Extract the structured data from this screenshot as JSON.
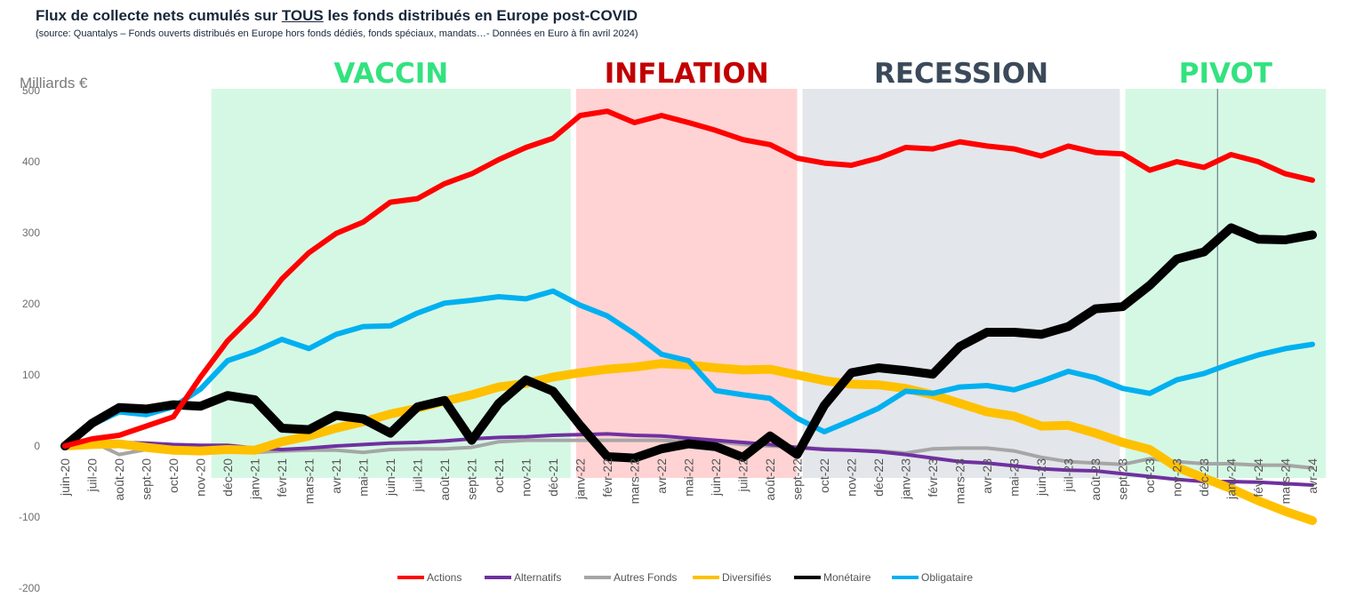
{
  "header": {
    "title_before": "Flux de collecte nets cumulés sur ",
    "title_emph": "TOUS",
    "title_after": " les fonds distribués en Europe post-COVID",
    "subtitle": "(source: Quantalys – Fonds ouverts distribués en Europe hors fonds dédiés, fonds spéciaux, mandats…- Données en Euro à fin avril 2024)"
  },
  "chart_data": {
    "type": "line",
    "ylabel": "Milliards €",
    "ylim": [
      -200,
      500
    ],
    "yticks": [
      500,
      400,
      300,
      200,
      100,
      0,
      -100,
      -200
    ],
    "categories": [
      "juin-20",
      "juil-20",
      "août-20",
      "sept-20",
      "oct-20",
      "nov-20",
      "déc-20",
      "janv-21",
      "févr-21",
      "mars-21",
      "avr-21",
      "mai-21",
      "juin-21",
      "juil-21",
      "août-21",
      "sept-21",
      "oct-21",
      "nov-21",
      "déc-21",
      "janv-22",
      "févr-22",
      "mars-22",
      "avr-22",
      "mai-22",
      "juin-22",
      "juil-22",
      "août-22",
      "sept-22",
      "oct-22",
      "nov-22",
      "déc-22",
      "janv-23",
      "févr-23",
      "mars-23",
      "avr-23",
      "mai-23",
      "juin-23",
      "juil-23",
      "août-23",
      "sept-23",
      "oct-23",
      "nov-23",
      "déc-23",
      "janv-24",
      "févr-24",
      "mars-24",
      "avr-24"
    ],
    "periods": [
      {
        "label": "VACCIN",
        "start": 5.4,
        "end": 18.65,
        "color": "#d5f8e4",
        "text_color": "#33e27f"
      },
      {
        "label": "INFLATION",
        "start": 18.85,
        "end": 27.0,
        "color": "#ffd3d3",
        "text_color": "#c20000"
      },
      {
        "label": "RECESSION",
        "start": 27.2,
        "end": 38.9,
        "color": "#e3e6ea",
        "text_color": "#3b4a5a"
      },
      {
        "label": "PIVOT",
        "start": 39.1,
        "end": 46.5,
        "color": "#d5f8e4",
        "text_color": "#33e27f"
      }
    ],
    "vline_at": 42.5,
    "series": [
      {
        "name": "Autres Fonds",
        "color": "#a6a6a6",
        "width": 4,
        "values": [
          0,
          6,
          -12,
          -5,
          -3,
          -4,
          -3,
          -9,
          -7,
          -6,
          -6,
          -9,
          -5,
          -4,
          -4,
          -2,
          6,
          8,
          8,
          8,
          8,
          8,
          8,
          6,
          6,
          2,
          0,
          -2,
          -4,
          -6,
          -7,
          -10,
          -4,
          -3,
          -3,
          -7,
          -16,
          -22,
          -24,
          -26,
          -18,
          -22,
          -25,
          -25,
          -27,
          -27,
          -31
        ]
      },
      {
        "name": "Alternatifs",
        "color": "#7030a0",
        "width": 4,
        "values": [
          0,
          4,
          5,
          4,
          2,
          1,
          1,
          -3,
          -5,
          -3,
          0,
          2,
          4,
          5,
          7,
          10,
          12,
          13,
          15,
          16,
          17,
          15,
          14,
          11,
          8,
          5,
          2,
          -2,
          -5,
          -6,
          -8,
          -12,
          -17,
          -22,
          -24,
          -28,
          -32,
          -34,
          -35,
          -39,
          -43,
          -47,
          -50,
          -50,
          -51,
          -53,
          -55
        ]
      },
      {
        "name": "Diversifiés",
        "color": "#ffc000",
        "width": 10,
        "values": [
          0,
          2,
          3,
          -2,
          -6,
          -7,
          -5,
          -6,
          6,
          14,
          25,
          34,
          45,
          53,
          63,
          72,
          83,
          88,
          97,
          103,
          108,
          111,
          116,
          114,
          110,
          107,
          108,
          100,
          92,
          87,
          86,
          81,
          72,
          60,
          48,
          42,
          28,
          29,
          18,
          5,
          -5,
          -30,
          -45,
          -60,
          -77,
          -92,
          -105
        ]
      },
      {
        "name": "Obligataire",
        "color": "#00b0f0",
        "width": 6,
        "values": [
          0,
          30,
          48,
          44,
          55,
          80,
          120,
          133,
          150,
          137,
          157,
          168,
          169,
          187,
          201,
          205,
          210,
          207,
          218,
          198,
          183,
          158,
          129,
          120,
          78,
          72,
          67,
          39,
          20,
          36,
          53,
          77,
          74,
          83,
          85,
          79,
          91,
          105,
          96,
          81,
          74,
          93,
          102,
          116,
          128,
          137,
          143
        ]
      },
      {
        "name": "Monétaire",
        "color": "#000000",
        "width": 10,
        "values": [
          0,
          32,
          54,
          52,
          58,
          56,
          71,
          65,
          25,
          23,
          43,
          38,
          18,
          55,
          64,
          8,
          60,
          93,
          77,
          29,
          -15,
          -17,
          -4,
          3,
          -1,
          -16,
          14,
          -12,
          57,
          103,
          110,
          106,
          101,
          140,
          160,
          160,
          157,
          168,
          193,
          196,
          226,
          263,
          273,
          307,
          291,
          290,
          297
        ]
      },
      {
        "name": "Actions",
        "color": "#ff0000",
        "width": 6,
        "values": [
          0,
          10,
          15,
          28,
          41,
          97,
          148,
          186,
          235,
          272,
          299,
          315,
          343,
          348,
          369,
          383,
          403,
          420,
          433,
          465,
          471,
          455,
          465,
          455,
          444,
          431,
          424,
          405,
          398,
          395,
          405,
          420,
          418,
          428,
          422,
          418,
          408,
          422,
          413,
          411,
          388,
          400,
          392,
          410,
          400,
          383,
          374
        ]
      }
    ],
    "legend": [
      "Actions",
      "Alternatifs",
      "Autres Fonds",
      "Diversifiés",
      "Monétaire",
      "Obligataire"
    ],
    "legend_position": "bottom"
  }
}
